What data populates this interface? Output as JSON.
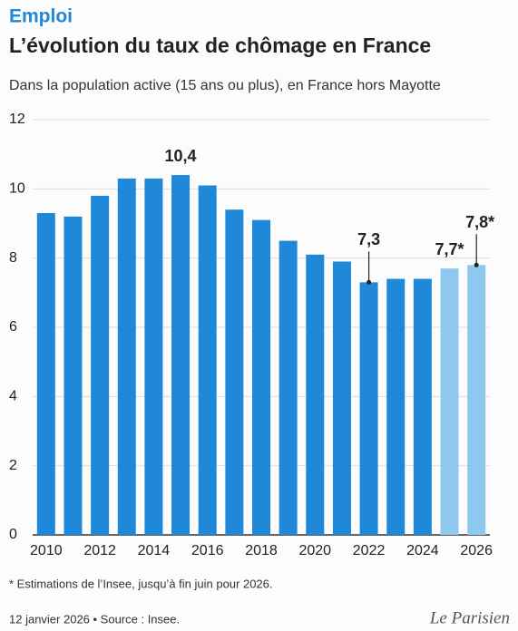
{
  "chart_data": {
    "type": "bar",
    "kicker": "Emploi",
    "title": "L’évolution du taux de chômage en France",
    "subtitle": "Dans la population active (15 ans ou plus), en France hors Mayotte",
    "categories": [
      "2010",
      null,
      "2012",
      null,
      "2014",
      null,
      "2016",
      null,
      "2018",
      null,
      "2020",
      null,
      "2022",
      null,
      "2024",
      null,
      "2026"
    ],
    "values": [
      9.3,
      9.2,
      9.8,
      10.3,
      10.3,
      10.4,
      10.1,
      9.4,
      9.1,
      8.5,
      8.1,
      7.9,
      7.3,
      7.4,
      7.4,
      7.7,
      7.8
    ],
    "value_labels": [
      null,
      null,
      null,
      null,
      null,
      "10,4",
      null,
      null,
      null,
      null,
      null,
      null,
      "7,3",
      null,
      null,
      "7,7*",
      "7,8*"
    ],
    "colors": [
      "#1f88d9",
      "#1f88d9",
      "#1f88d9",
      "#1f88d9",
      "#1f88d9",
      "#1f88d9",
      "#1f88d9",
      "#1f88d9",
      "#1f88d9",
      "#1f88d9",
      "#1f88d9",
      "#1f88d9",
      "#1f88d9",
      "#1f88d9",
      "#1f88d9",
      "#8fc8ef",
      "#8fc8ef"
    ],
    "ylim": [
      0,
      12
    ],
    "yticks": [
      0,
      2,
      4,
      6,
      8,
      10,
      12
    ],
    "grid": true,
    "note": "* Estimations de l’Insee, jusqu’à fin juin pour 2026.",
    "source": "12 janvier 2026 • Source : Insee.",
    "logo": "Le Parisien"
  }
}
